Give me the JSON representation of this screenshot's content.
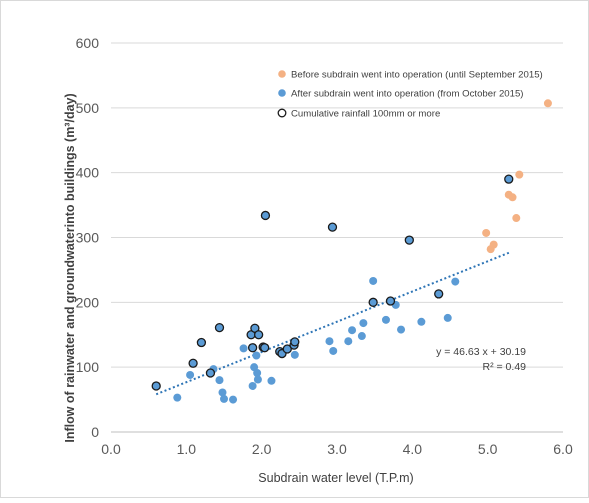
{
  "colors": {
    "before": "#f4b183",
    "after": "#5b9bd5",
    "rainfall_fill": "#5b9bd5",
    "rainfall_stroke": "#1a1a1a",
    "trend": "#2e75b6",
    "grid": "#d9d9d9",
    "axis_text": "#595959"
  },
  "chart_data": {
    "type": "scatter",
    "xlabel": "Subdrain water level (T.P.m)",
    "ylabel": "Inflow of rainwater and groundwaterinto buildings (m³/day)",
    "xlim": [
      0,
      6
    ],
    "ylim": [
      0,
      600
    ],
    "x_ticks": [
      "0.0",
      "1.0",
      "2.0",
      "3.0",
      "4.0",
      "5.0",
      "6.0"
    ],
    "y_ticks": [
      "0",
      "100",
      "200",
      "300",
      "400",
      "500",
      "600"
    ],
    "grid": "horizontal",
    "legend_position": "top-right",
    "legend": [
      "Before subdrain went into operation (until September 2015)",
      "After subdrain went into operation (from October 2015)",
      "Cumulative rainfall 100mm or more"
    ],
    "series": [
      {
        "name": "Before subdrain went into operation (until September 2015)",
        "points": [
          [
            4.98,
            307
          ],
          [
            5.04,
            282
          ],
          [
            5.08,
            289
          ],
          [
            5.28,
            366
          ],
          [
            5.33,
            362
          ],
          [
            5.38,
            330
          ],
          [
            5.42,
            397
          ],
          [
            5.8,
            507
          ]
        ]
      },
      {
        "name": "After subdrain went into operation (from October 2015)",
        "points": [
          [
            0.88,
            53
          ],
          [
            1.05,
            88
          ],
          [
            1.36,
            97
          ],
          [
            1.44,
            80
          ],
          [
            1.48,
            61
          ],
          [
            1.5,
            51
          ],
          [
            1.62,
            50
          ],
          [
            1.76,
            129
          ],
          [
            1.88,
            71
          ],
          [
            1.9,
            100
          ],
          [
            1.93,
            118
          ],
          [
            1.94,
            91
          ],
          [
            1.95,
            81
          ],
          [
            2.13,
            79
          ],
          [
            2.44,
            119
          ],
          [
            2.9,
            140
          ],
          [
            2.95,
            125
          ],
          [
            3.15,
            140
          ],
          [
            3.2,
            157
          ],
          [
            3.33,
            148
          ],
          [
            3.35,
            168
          ],
          [
            3.48,
            233
          ],
          [
            3.65,
            173
          ],
          [
            3.78,
            196
          ],
          [
            3.85,
            158
          ],
          [
            4.12,
            170
          ],
          [
            4.47,
            176
          ],
          [
            4.57,
            232
          ]
        ]
      },
      {
        "name": "Cumulative rainfall 100mm or more",
        "points": [
          [
            0.6,
            71
          ],
          [
            1.09,
            106
          ],
          [
            1.2,
            138
          ],
          [
            1.32,
            91
          ],
          [
            1.44,
            161
          ],
          [
            1.86,
            150
          ],
          [
            1.88,
            130
          ],
          [
            1.91,
            160
          ],
          [
            1.96,
            150
          ],
          [
            2.02,
            131
          ],
          [
            2.04,
            130
          ],
          [
            2.05,
            334
          ],
          [
            2.24,
            124
          ],
          [
            2.27,
            121
          ],
          [
            2.34,
            128
          ],
          [
            2.43,
            134
          ],
          [
            2.44,
            139
          ],
          [
            2.94,
            316
          ],
          [
            3.48,
            200
          ],
          [
            3.71,
            202
          ],
          [
            3.96,
            296
          ],
          [
            4.35,
            213
          ],
          [
            5.28,
            390
          ]
        ]
      }
    ],
    "trendline": {
      "slope": 46.63,
      "intercept": 30.19,
      "x_range": [
        0.6,
        5.3
      ],
      "equation": "y = 46.63 x + 30.19",
      "r_squared": "R² = 0.49"
    }
  }
}
